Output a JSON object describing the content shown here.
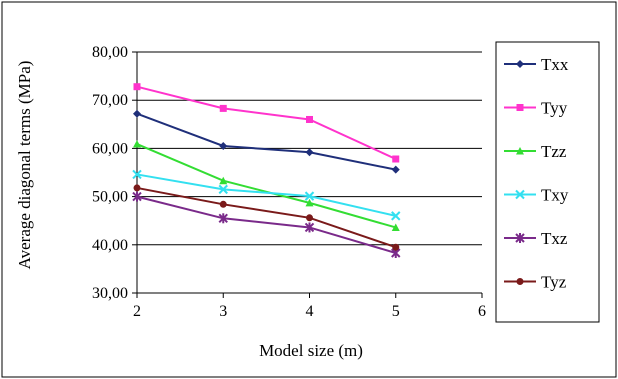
{
  "chart_data": {
    "type": "line",
    "title": "",
    "xlabel": "Model size (m)",
    "ylabel": "Average diagonal terms (MPa)",
    "xlim": [
      2,
      6
    ],
    "ylim": [
      30,
      80
    ],
    "xticks": [
      "2",
      "3",
      "4",
      "5",
      "6"
    ],
    "yticks": [
      "30,00",
      "40,00",
      "50,00",
      "60,00",
      "70,00",
      "80,00"
    ],
    "grid": "horizontal",
    "legend": "right",
    "x": [
      2,
      3,
      4,
      5
    ],
    "series": [
      {
        "name": "Txx",
        "color": "#1f2f7a",
        "marker": "diamond",
        "values": [
          67.2,
          60.5,
          59.2,
          55.6
        ]
      },
      {
        "name": "Tyy",
        "color": "#ff33cc",
        "marker": "square",
        "values": [
          72.8,
          68.3,
          66.0,
          57.8
        ]
      },
      {
        "name": "Tzz",
        "color": "#33dd33",
        "marker": "triangle",
        "values": [
          60.9,
          53.3,
          48.7,
          43.6
        ]
      },
      {
        "name": "Txy",
        "color": "#33e0f0",
        "marker": "x",
        "values": [
          54.6,
          51.5,
          50.1,
          46.0
        ]
      },
      {
        "name": "Txz",
        "color": "#7a2a8a",
        "marker": "star",
        "values": [
          50.0,
          45.5,
          43.6,
          38.3
        ]
      },
      {
        "name": "Tyz",
        "color": "#7a1a1a",
        "marker": "circle",
        "values": [
          51.8,
          48.4,
          45.6,
          39.5
        ]
      }
    ]
  }
}
